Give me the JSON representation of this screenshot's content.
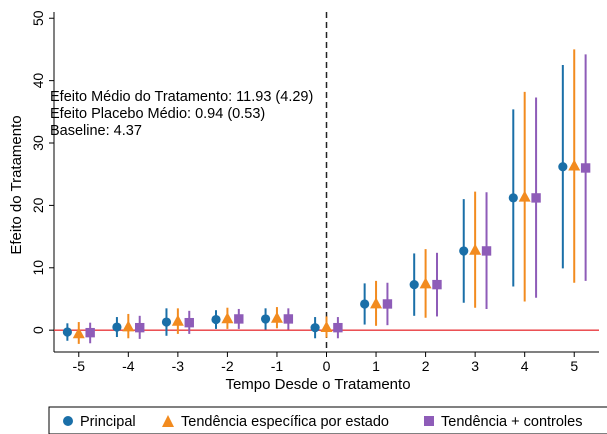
{
  "chart_data": {
    "type": "scatter",
    "title": "",
    "xlabel": "Tempo Desde o Tratamento",
    "ylabel": "Efeito do Tratamento",
    "xlim": [
      -5.5,
      5.5
    ],
    "ylim": [
      -3.5,
      51
    ],
    "x_ticks": [
      -5,
      -4,
      -3,
      -2,
      -1,
      0,
      1,
      2,
      3,
      4,
      5
    ],
    "y_ticks": [
      0,
      10,
      20,
      30,
      40,
      50
    ],
    "grid": false,
    "legend_position": "bottom",
    "reference_lines": {
      "horizontal_y": 0,
      "horizontal_color": "#e8383d",
      "vertical_x": 0,
      "vertical_style": "dashed"
    },
    "annotations": [
      "Efeito Médio do Tratamento: 11.93 (4.29)",
      "Efeito Placebo Médio: 0.94 (0.53)",
      "Baseline:  4.37"
    ],
    "series": [
      {
        "name": "Principal",
        "marker": "circle",
        "color": "#1a6fa8",
        "offset": -0.23,
        "x": [
          -5,
          -4,
          -3,
          -2,
          -1,
          0,
          1,
          2,
          3,
          4,
          5
        ],
        "y": [
          -0.3,
          0.5,
          1.3,
          1.7,
          1.8,
          0.4,
          4.2,
          7.3,
          12.7,
          21.2,
          26.2
        ],
        "lower": [
          -1.7,
          -1.1,
          -0.9,
          0.2,
          0.1,
          -1.3,
          0.9,
          2.3,
          4.4,
          7.0,
          9.9
        ],
        "upper": [
          1.1,
          2.1,
          3.5,
          3.2,
          3.5,
          2.1,
          7.5,
          12.3,
          21.0,
          35.4,
          42.5
        ]
      },
      {
        "name": "Tendência específica por estado",
        "marker": "triangle",
        "color": "#f28b1f",
        "offset": 0.0,
        "x": [
          -5,
          -4,
          -3,
          -2,
          -1,
          0,
          1,
          2,
          3,
          4,
          5
        ],
        "y": [
          -0.5,
          0.6,
          1.5,
          1.9,
          2.0,
          0.5,
          4.3,
          7.5,
          12.9,
          21.4,
          26.4
        ],
        "lower": [
          -2.2,
          -1.3,
          -0.6,
          0.2,
          0.3,
          -1.2,
          0.7,
          2.0,
          3.6,
          4.6,
          7.6
        ],
        "upper": [
          1.3,
          2.6,
          3.5,
          3.6,
          3.7,
          2.2,
          7.9,
          13.0,
          22.2,
          38.2,
          45.0
        ]
      },
      {
        "name": "Tendência + controles",
        "marker": "square",
        "color": "#8e5cb8",
        "offset": 0.23,
        "x": [
          -5,
          -4,
          -3,
          -2,
          -1,
          0,
          1,
          2,
          3,
          4,
          5
        ],
        "y": [
          -0.4,
          0.4,
          1.2,
          1.8,
          1.8,
          0.4,
          4.2,
          7.3,
          12.7,
          21.2,
          26.0
        ],
        "lower": [
          -2.1,
          -1.4,
          -0.6,
          0.2,
          0.1,
          -1.3,
          0.8,
          2.2,
          3.4,
          5.2,
          7.9
        ],
        "upper": [
          1.2,
          2.3,
          3.1,
          3.4,
          3.5,
          2.1,
          7.6,
          12.4,
          22.1,
          37.3,
          44.2
        ]
      }
    ]
  }
}
